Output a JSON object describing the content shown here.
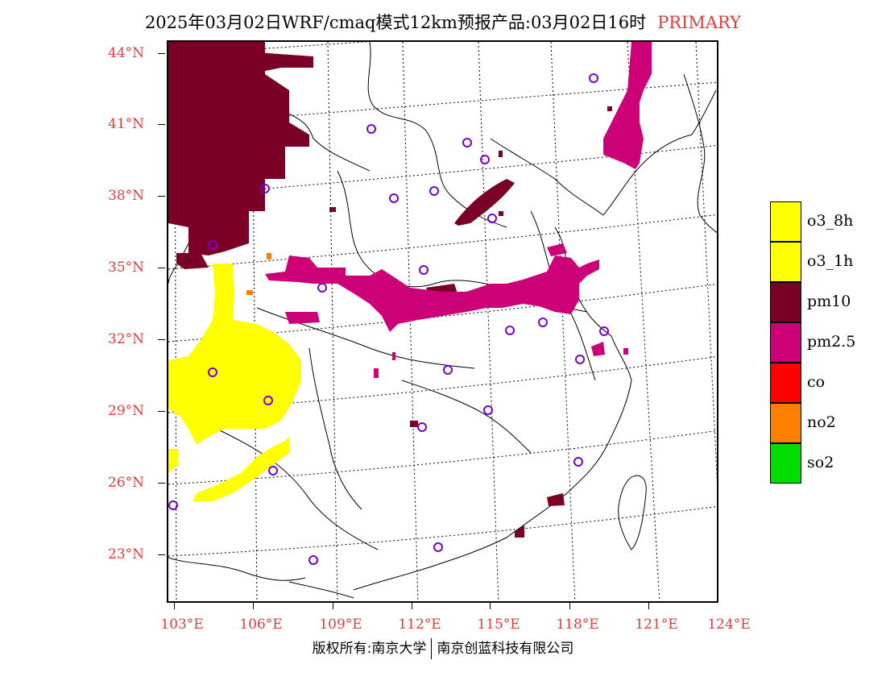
{
  "title": {
    "main": "2025年03月02日WRF/cmaq模式12km预报产品:03月02日16时",
    "tag": "PRIMARY"
  },
  "axes": {
    "lat_labels": [
      "44°N",
      "41°N",
      "38°N",
      "35°N",
      "32°N",
      "29°N",
      "26°N",
      "23°N"
    ],
    "lon_labels": [
      "103°E",
      "106°E",
      "109°E",
      "112°E",
      "115°E",
      "118°E",
      "121°E",
      "124°E"
    ]
  },
  "legend": [
    {
      "label": "o3_8h",
      "color": "#ffff00"
    },
    {
      "label": "o3_1h",
      "color": "#ffff00"
    },
    {
      "label": "pm10",
      "color": "#7a0026"
    },
    {
      "label": "pm2.5",
      "color": "#cc0077"
    },
    {
      "label": "co",
      "color": "#ff0000"
    },
    {
      "label": "no2",
      "color": "#ff7f00"
    },
    {
      "label": "so2",
      "color": "#00dd00"
    }
  ],
  "footer": {
    "left": "版权所有:南京大学",
    "right": "南京创蓝科技有限公司"
  }
}
